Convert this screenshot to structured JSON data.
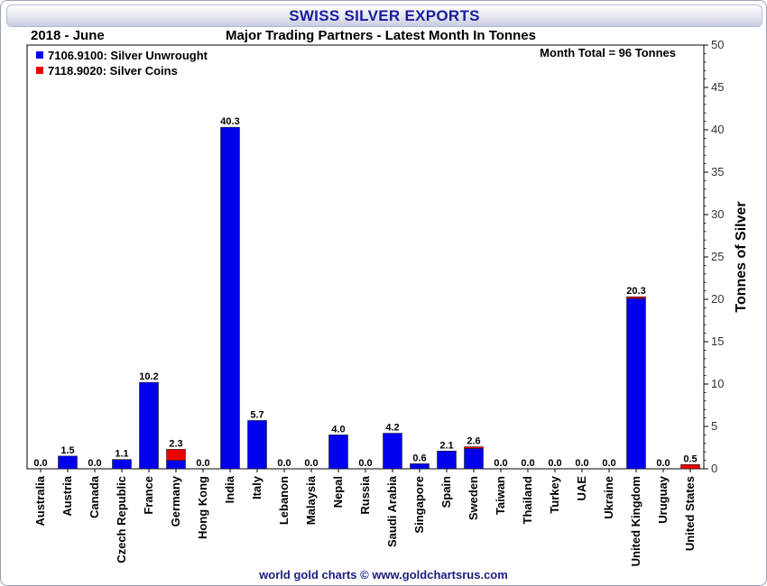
{
  "header": {
    "title": "SWISS SILVER EXPORTS",
    "period": "2018 - June",
    "subtitle": "Major Trading Partners - Latest Month In Tonnes"
  },
  "footer": {
    "credit": "world gold charts © www.goldchartsrus.com"
  },
  "chart_data": {
    "type": "bar",
    "stacked": true,
    "title": "SWISS SILVER EXPORTS",
    "subtitle": "Major Trading Partners - Latest Month In Tonnes",
    "annotation": "Month Total = 96 Tonnes",
    "xlabel": "",
    "ylabel": "Tonnes of Silver",
    "ylim": [
      0,
      50
    ],
    "yticks": [
      0,
      5,
      10,
      15,
      20,
      25,
      30,
      35,
      40,
      45,
      50
    ],
    "grid": false,
    "legend_position": "top-left",
    "categories": [
      "Australia",
      "Austria",
      "Canada",
      "Czech Republic",
      "France",
      "Germany",
      "Hong Kong",
      "India",
      "Italy",
      "Lebanon",
      "Malaysia",
      "Nepal",
      "Russia",
      "Saudi Arabia",
      "Singapore",
      "Spain",
      "Sweden",
      "Taiwan",
      "Thailand",
      "Turkey",
      "UAE",
      "Ukraine",
      "United Kingdom",
      "Uruguay",
      "United States"
    ],
    "series": [
      {
        "name": "7106.9100: Silver Unwrought",
        "color": "#0000ee",
        "values": [
          0,
          1.5,
          0,
          1.1,
          10.2,
          1.0,
          0,
          40.3,
          5.7,
          0,
          0,
          4.0,
          0,
          4.2,
          0.6,
          2.1,
          2.4,
          0,
          0,
          0,
          0,
          0,
          20.1,
          0,
          0.0
        ]
      },
      {
        "name": "7118.9020: Silver Coins",
        "color": "#ee0000",
        "values": [
          0,
          0,
          0,
          0,
          0,
          1.3,
          0,
          0,
          0,
          0,
          0,
          0,
          0,
          0,
          0,
          0,
          0.2,
          0,
          0,
          0,
          0,
          0,
          0.2,
          0,
          0.5
        ]
      }
    ],
    "totals_labels": [
      "0.0",
      "1.5",
      "0.0",
      "1.1",
      "10.2",
      "2.3",
      "0.0",
      "40.3",
      "5.7",
      "0.0",
      "0.0",
      "4.0",
      "0.0",
      "4.2",
      "0.6",
      "2.1",
      "2.6",
      "0.0",
      "0.0",
      "0.0",
      "0.0",
      "0.0",
      "20.3",
      "0.0",
      "0.5"
    ]
  }
}
